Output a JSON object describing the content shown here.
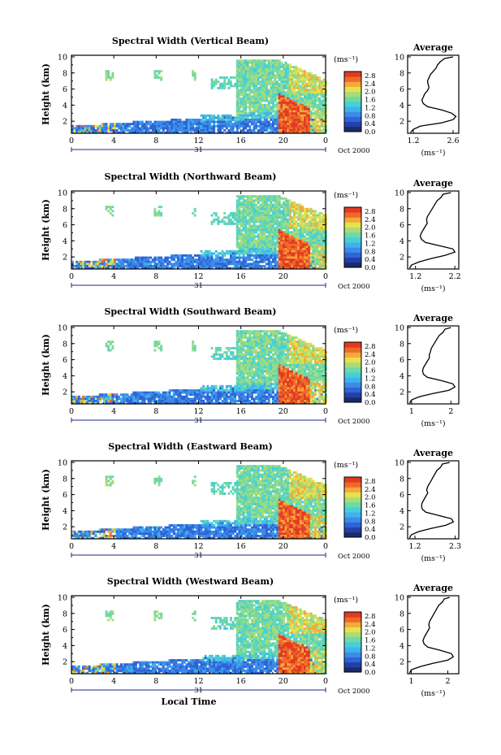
{
  "colormap": [
    "#1b2a6b",
    "#2440a8",
    "#2f63d6",
    "#3b8be8",
    "#3fb2ee",
    "#47cfd8",
    "#6ed8a8",
    "#a8dc78",
    "#e6e24c",
    "#f4a93a",
    "#ef6a2a",
    "#e23a22"
  ],
  "chart_data": [
    {
      "type": "heatmap",
      "title": "Spectral Width (Vertical Beam)",
      "ylabel": "Height (km)",
      "xlabel": "",
      "xticks": [
        "0",
        "4",
        "8",
        "12",
        "16",
        "20",
        "0"
      ],
      "yticks": [
        "2",
        "4",
        "6",
        "8",
        "10"
      ],
      "xlim": [
        0,
        24
      ],
      "ylim": [
        0.5,
        10.2
      ],
      "date_day": "31",
      "date_right": "Oct 2000",
      "colorbar": {
        "unit": "(ms⁻¹)",
        "ticks": [
          "0.0",
          "0.4",
          "0.8",
          "1.2",
          "1.6",
          "2.0",
          "2.4",
          "2.8"
        ],
        "range": [
          0.0,
          3.0
        ]
      },
      "average": {
        "title": "Average",
        "xunit": "(ms⁻¹)",
        "xticks": [
          "1.2",
          "2.6"
        ],
        "xlim": [
          1.0,
          2.8
        ],
        "height": [
          0.6,
          1.0,
          1.4,
          1.8,
          2.2,
          2.6,
          3.0,
          3.4,
          3.8,
          4.2,
          4.6,
          5.0,
          5.4,
          5.8,
          6.2,
          6.6,
          7.0,
          7.4,
          7.8,
          8.2,
          8.6,
          9.0,
          9.4,
          9.8,
          10.0
        ],
        "value": [
          1.1,
          1.2,
          1.45,
          2.2,
          2.6,
          2.7,
          2.55,
          2.2,
          1.7,
          1.55,
          1.5,
          1.55,
          1.6,
          1.7,
          1.75,
          1.72,
          1.7,
          1.75,
          1.8,
          1.9,
          2.0,
          2.05,
          2.15,
          2.3,
          2.6
        ]
      }
    },
    {
      "type": "heatmap",
      "title": "Spectral Width (Northward Beam)",
      "ylabel": "Height (km)",
      "xlabel": "",
      "xticks": [
        "0",
        "4",
        "8",
        "12",
        "16",
        "20",
        "0"
      ],
      "yticks": [
        "2",
        "4",
        "6",
        "8",
        "10"
      ],
      "xlim": [
        0,
        24
      ],
      "ylim": [
        0.5,
        10.2
      ],
      "date_day": "31",
      "date_right": "Oct 2000",
      "colorbar": {
        "unit": "(ms⁻¹)",
        "ticks": [
          "0.0",
          "0.4",
          "0.8",
          "1.2",
          "1.6",
          "2.0",
          "2.4",
          "2.8"
        ],
        "range": [
          0.0,
          3.0
        ]
      },
      "average": {
        "title": "Average",
        "xunit": "(ms⁻¹)",
        "xticks": [
          "1.2",
          "2.2"
        ],
        "xlim": [
          1.0,
          2.3
        ],
        "height": [
          0.6,
          1.0,
          1.4,
          1.8,
          2.2,
          2.6,
          3.0,
          3.4,
          3.8,
          4.2,
          4.6,
          5.0,
          5.4,
          5.8,
          6.2,
          6.6,
          7.0,
          7.4,
          7.8,
          8.2,
          8.6,
          9.0,
          9.4,
          9.8,
          10.0
        ],
        "value": [
          1.05,
          1.1,
          1.3,
          1.6,
          1.95,
          2.2,
          2.15,
          1.8,
          1.45,
          1.35,
          1.32,
          1.35,
          1.4,
          1.45,
          1.5,
          1.48,
          1.5,
          1.55,
          1.6,
          1.65,
          1.7,
          1.75,
          1.85,
          1.9,
          2.1
        ]
      }
    },
    {
      "type": "heatmap",
      "title": "Spectral Width (Southward Beam)",
      "ylabel": "Height (km)",
      "xlabel": "",
      "xticks": [
        "0",
        "4",
        "8",
        "12",
        "16",
        "20",
        "0"
      ],
      "yticks": [
        "2",
        "4",
        "6",
        "8",
        "10"
      ],
      "xlim": [
        0,
        24
      ],
      "ylim": [
        0.5,
        10.2
      ],
      "date_day": "31",
      "date_right": "Oct 2000",
      "colorbar": {
        "unit": "(ms⁻¹)",
        "ticks": [
          "0.0",
          "0.4",
          "0.8",
          "1.2",
          "1.6",
          "2.0",
          "2.4",
          "2.8"
        ],
        "range": [
          0.0,
          3.0
        ]
      },
      "average": {
        "title": "Average",
        "xunit": "(ms⁻¹)",
        "xticks": [
          "1",
          "2"
        ],
        "xlim": [
          0.9,
          2.2
        ],
        "height": [
          0.6,
          1.0,
          1.4,
          1.8,
          2.2,
          2.6,
          3.0,
          3.4,
          3.8,
          4.2,
          4.6,
          5.0,
          5.4,
          5.8,
          6.2,
          6.6,
          7.0,
          7.4,
          7.8,
          8.2,
          8.6,
          9.0,
          9.4,
          9.8,
          10.0
        ],
        "value": [
          0.95,
          1.0,
          1.2,
          1.55,
          1.95,
          2.1,
          2.05,
          1.75,
          1.4,
          1.3,
          1.28,
          1.3,
          1.35,
          1.4,
          1.45,
          1.45,
          1.48,
          1.5,
          1.55,
          1.6,
          1.65,
          1.7,
          1.8,
          1.85,
          2.0
        ]
      }
    },
    {
      "type": "heatmap",
      "title": "Spectral Width (Eastward Beam)",
      "ylabel": "Height (km)",
      "xlabel": "",
      "xticks": [
        "0",
        "4",
        "8",
        "12",
        "16",
        "20",
        "0"
      ],
      "yticks": [
        "2",
        "4",
        "6",
        "8",
        "10"
      ],
      "xlim": [
        0,
        24
      ],
      "ylim": [
        0.5,
        10.2
      ],
      "date_day": "31",
      "date_right": "Oct 2000",
      "colorbar": {
        "unit": "(ms⁻¹)",
        "ticks": [
          "0.0",
          "0.4",
          "0.8",
          "1.2",
          "1.6",
          "2.0",
          "2.4",
          "2.8"
        ],
        "range": [
          0.0,
          3.0
        ]
      },
      "average": {
        "title": "Average",
        "xunit": "(ms⁻¹)",
        "xticks": [
          "1.2",
          "2.3"
        ],
        "xlim": [
          1.0,
          2.4
        ],
        "height": [
          0.6,
          1.0,
          1.4,
          1.8,
          2.2,
          2.6,
          3.0,
          3.4,
          3.8,
          4.2,
          4.6,
          5.0,
          5.4,
          5.8,
          6.2,
          6.6,
          7.0,
          7.4,
          7.8,
          8.2,
          8.6,
          9.0,
          9.4,
          9.8,
          10.0
        ],
        "value": [
          1.05,
          1.1,
          1.3,
          1.65,
          2.05,
          2.25,
          2.2,
          1.85,
          1.5,
          1.4,
          1.38,
          1.4,
          1.45,
          1.5,
          1.55,
          1.52,
          1.55,
          1.6,
          1.65,
          1.7,
          1.75,
          1.8,
          1.9,
          1.95,
          2.15
        ]
      }
    },
    {
      "type": "heatmap",
      "title": "Spectral Width (Westward Beam)",
      "ylabel": "Height (km)",
      "xlabel": "Local Time",
      "xticks": [
        "0",
        "4",
        "8",
        "12",
        "16",
        "20",
        "0"
      ],
      "yticks": [
        "2",
        "4",
        "6",
        "8",
        "10"
      ],
      "xlim": [
        0,
        24
      ],
      "ylim": [
        0.5,
        10.2
      ],
      "date_day": "31",
      "date_right": "Oct 2000",
      "colorbar": {
        "unit": "(ms⁻¹)",
        "ticks": [
          "0.0",
          "0.4",
          "0.8",
          "1.2",
          "1.6",
          "2.0",
          "2.4",
          "2.8"
        ],
        "range": [
          0.0,
          3.0
        ]
      },
      "average": {
        "title": "Average",
        "xunit": "(ms⁻¹)",
        "xticks": [
          "1",
          "2"
        ],
        "xlim": [
          0.9,
          2.3
        ],
        "height": [
          0.6,
          1.0,
          1.4,
          1.8,
          2.2,
          2.6,
          3.0,
          3.4,
          3.8,
          4.2,
          4.6,
          5.0,
          5.4,
          5.8,
          6.2,
          6.6,
          7.0,
          7.4,
          7.8,
          8.2,
          8.6,
          9.0,
          9.4,
          9.8,
          10.0
        ],
        "value": [
          0.95,
          1.0,
          1.25,
          1.6,
          2.0,
          2.15,
          2.1,
          1.8,
          1.45,
          1.35,
          1.32,
          1.35,
          1.4,
          1.45,
          1.5,
          1.48,
          1.5,
          1.55,
          1.6,
          1.65,
          1.7,
          1.75,
          1.85,
          1.9,
          2.05
        ]
      }
    }
  ]
}
